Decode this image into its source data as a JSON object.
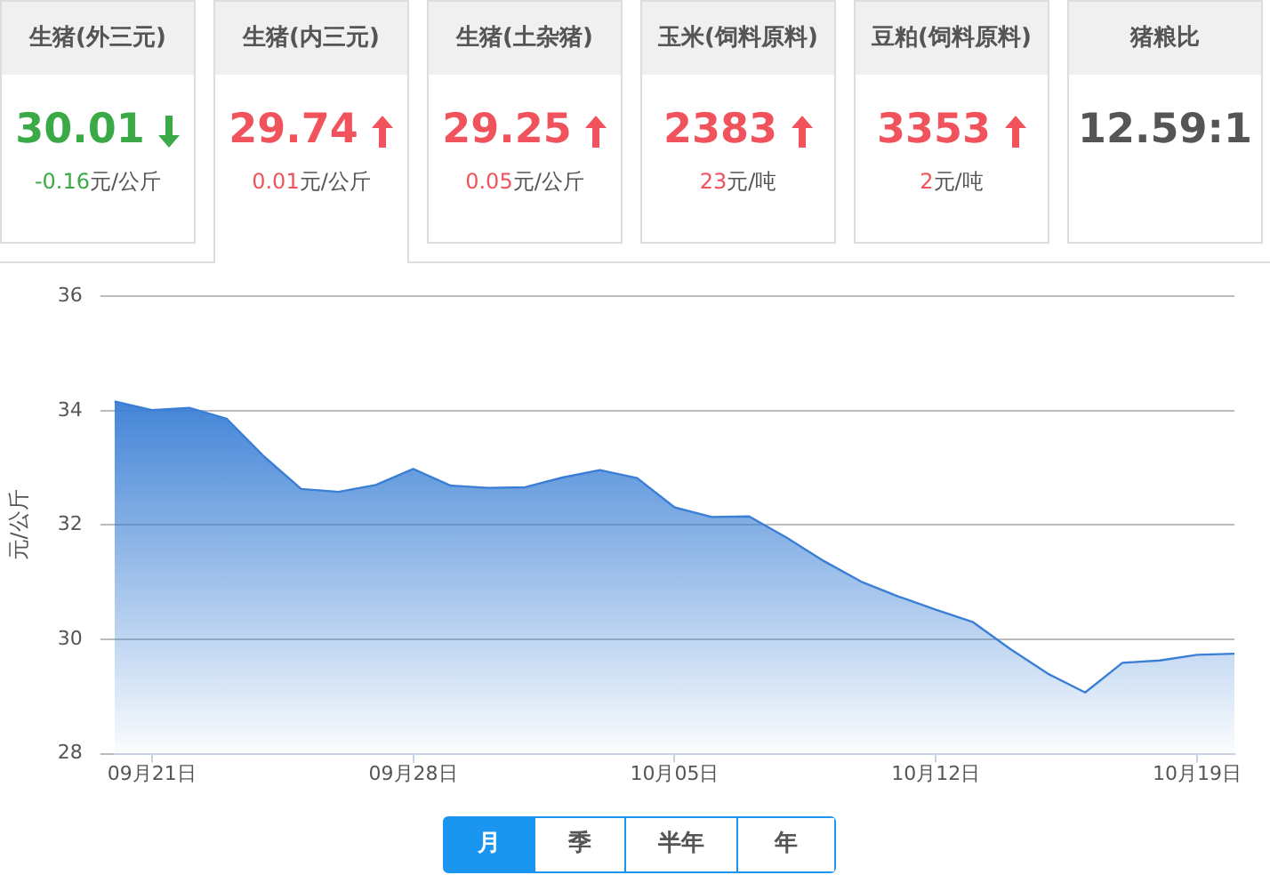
{
  "chart_data": [
    {
      "type": "other",
      "title": "生猪(外三元)",
      "value_labels": [
        "30.01"
      ],
      "color": "#3aa946",
      "annotations": [
        "-0.16元/公斤"
      ]
    },
    {
      "type": "other",
      "title": "生猪(内三元)",
      "value_labels": [
        "29.74"
      ],
      "color": "#f0535b",
      "annotations": [
        "0.01元/公斤"
      ]
    },
    {
      "type": "other",
      "title": "生猪(土杂猪)",
      "value_labels": [
        "29.25"
      ],
      "color": "#f0535b",
      "annotations": [
        "0.05元/公斤"
      ]
    },
    {
      "type": "other",
      "title": "玉米(饲料原料)",
      "value_labels": [
        "2383"
      ],
      "color": "#f0535b",
      "annotations": [
        "23元/吨"
      ]
    },
    {
      "type": "other",
      "title": "豆粕(饲料原料)",
      "value_labels": [
        "3353"
      ],
      "color": "#f0535b",
      "annotations": [
        "2元/吨"
      ]
    },
    {
      "type": "other",
      "title": "猪粮比",
      "value_labels": [
        "12.59:1"
      ],
      "color": "#555555"
    },
    {
      "type": "area",
      "ylabel": "元/公斤",
      "color": "#3a7fd5",
      "ylim": [
        28,
        36
      ],
      "yticks": [
        28,
        30,
        32,
        34,
        36
      ],
      "grid": "y",
      "categories": [
        null,
        "09月21日",
        null,
        null,
        null,
        null,
        null,
        null,
        "09月28日",
        null,
        null,
        null,
        null,
        null,
        null,
        "10月05日",
        null,
        null,
        null,
        null,
        null,
        null,
        "10月12日",
        null,
        null,
        null,
        null,
        null,
        null,
        "10月19日",
        null
      ],
      "values": [
        34.16,
        34.01,
        34.05,
        33.86,
        33.2,
        32.63,
        32.58,
        32.7,
        32.98,
        32.69,
        32.65,
        32.66,
        32.83,
        32.96,
        32.82,
        32.31,
        32.14,
        32.15,
        31.78,
        31.37,
        31.01,
        30.75,
        30.52,
        30.3,
        29.83,
        29.4,
        29.07,
        29.59,
        29.63,
        29.73,
        29.75
      ]
    },
    {
      "type": "other",
      "categories": [
        "月",
        "季",
        "半年",
        "年"
      ]
    }
  ]
}
